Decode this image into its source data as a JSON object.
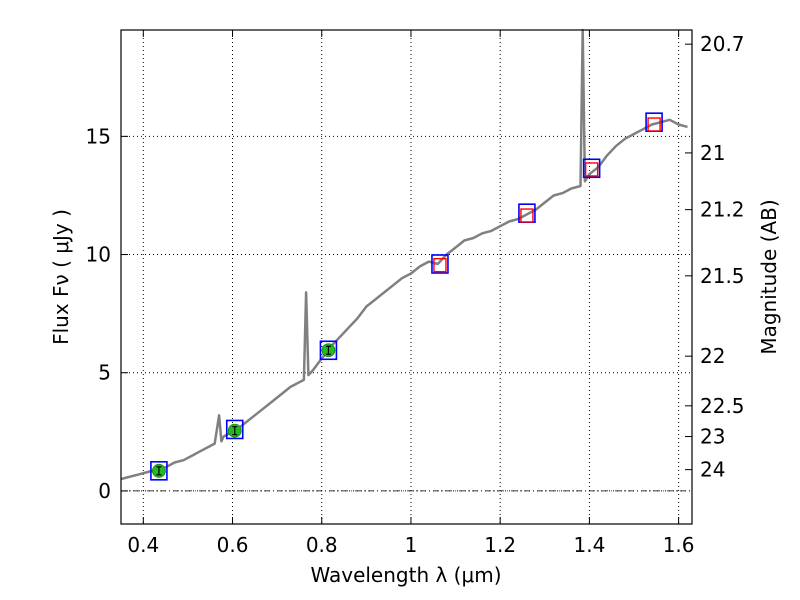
{
  "chart_data": {
    "type": "line",
    "title": "",
    "xlabel": "Wavelength  λ (μm)",
    "ylabel": "Flux  Fν  ( μJy )",
    "y2label": "Magnitude (AB)",
    "xlim": [
      0.35,
      1.63
    ],
    "ylim": [
      -1.4,
      19.5
    ],
    "grid": true,
    "xticks": [
      0.4,
      0.6,
      0.8,
      1.0,
      1.2,
      1.4,
      1.6
    ],
    "xtick_labels": [
      "0.4",
      "0.6",
      "0.8",
      "1",
      "1.2",
      "1.4",
      "1.6"
    ],
    "yticks": [
      0,
      5,
      10,
      15
    ],
    "ytick_labels": [
      "0",
      "5",
      "10",
      "15"
    ],
    "y2ticks": [
      {
        "mag": "20.7",
        "flux": 18.9
      },
      {
        "mag": "21",
        "flux": 14.3
      },
      {
        "mag": "21.2",
        "flux": 11.9
      },
      {
        "mag": "21.5",
        "flux": 9.1
      },
      {
        "mag": "22",
        "flux": 5.7
      },
      {
        "mag": "22.5",
        "flux": 3.6
      },
      {
        "mag": "23",
        "flux": 2.3
      },
      {
        "mag": "24",
        "flux": 0.9
      }
    ],
    "colors": {
      "spectrum": "#808080",
      "model_box": "#0000ff",
      "observed_box": "#ff0000",
      "observed_dot": "#22bb22",
      "baseline": "#000000"
    },
    "series": [
      {
        "name": "model spectrum",
        "x": [
          0.35,
          0.37,
          0.39,
          0.41,
          0.43,
          0.45,
          0.47,
          0.49,
          0.51,
          0.53,
          0.55,
          0.56,
          0.57,
          0.575,
          0.58,
          0.59,
          0.61,
          0.63,
          0.65,
          0.67,
          0.69,
          0.71,
          0.73,
          0.75,
          0.76,
          0.765,
          0.77,
          0.78,
          0.8,
          0.82,
          0.84,
          0.86,
          0.88,
          0.9,
          0.92,
          0.94,
          0.96,
          0.98,
          1.0,
          1.02,
          1.04,
          1.06,
          1.08,
          1.1,
          1.12,
          1.14,
          1.16,
          1.18,
          1.2,
          1.22,
          1.24,
          1.26,
          1.28,
          1.3,
          1.32,
          1.34,
          1.36,
          1.38,
          1.385,
          1.39,
          1.4,
          1.42,
          1.44,
          1.46,
          1.48,
          1.5,
          1.52,
          1.54,
          1.56,
          1.58,
          1.6,
          1.62
        ],
        "values": [
          0.5,
          0.6,
          0.7,
          0.8,
          0.9,
          1.0,
          1.2,
          1.3,
          1.5,
          1.7,
          1.9,
          2.0,
          3.2,
          2.1,
          2.3,
          2.4,
          2.6,
          2.9,
          3.2,
          3.5,
          3.8,
          4.1,
          4.4,
          4.6,
          4.7,
          8.4,
          4.9,
          5.1,
          5.6,
          6.1,
          6.5,
          6.9,
          7.3,
          7.8,
          8.1,
          8.4,
          8.7,
          9.0,
          9.2,
          9.5,
          9.7,
          9.6,
          10.0,
          10.3,
          10.6,
          10.7,
          10.9,
          11.0,
          11.2,
          11.4,
          11.5,
          11.7,
          11.9,
          12.2,
          12.5,
          12.6,
          12.8,
          12.9,
          19.5,
          13.1,
          13.4,
          13.7,
          14.2,
          14.6,
          14.9,
          15.1,
          15.3,
          15.5,
          15.6,
          15.7,
          15.5,
          15.4
        ]
      },
      {
        "name": "model photometry (blue boxes)",
        "x": [
          0.435,
          0.605,
          0.815,
          1.065,
          1.26,
          1.405,
          1.545
        ],
        "values": [
          0.85,
          2.6,
          5.95,
          9.6,
          11.75,
          13.65,
          15.6
        ]
      },
      {
        "name": "observed photometry (green points)",
        "x": [
          0.435,
          0.605,
          0.815
        ],
        "values": [
          0.85,
          2.55,
          5.95
        ]
      },
      {
        "name": "observed photometry (red boxes)",
        "x": [
          1.065,
          1.26,
          1.405,
          1.545
        ],
        "values": [
          9.55,
          11.65,
          13.6,
          15.5
        ]
      }
    ]
  }
}
